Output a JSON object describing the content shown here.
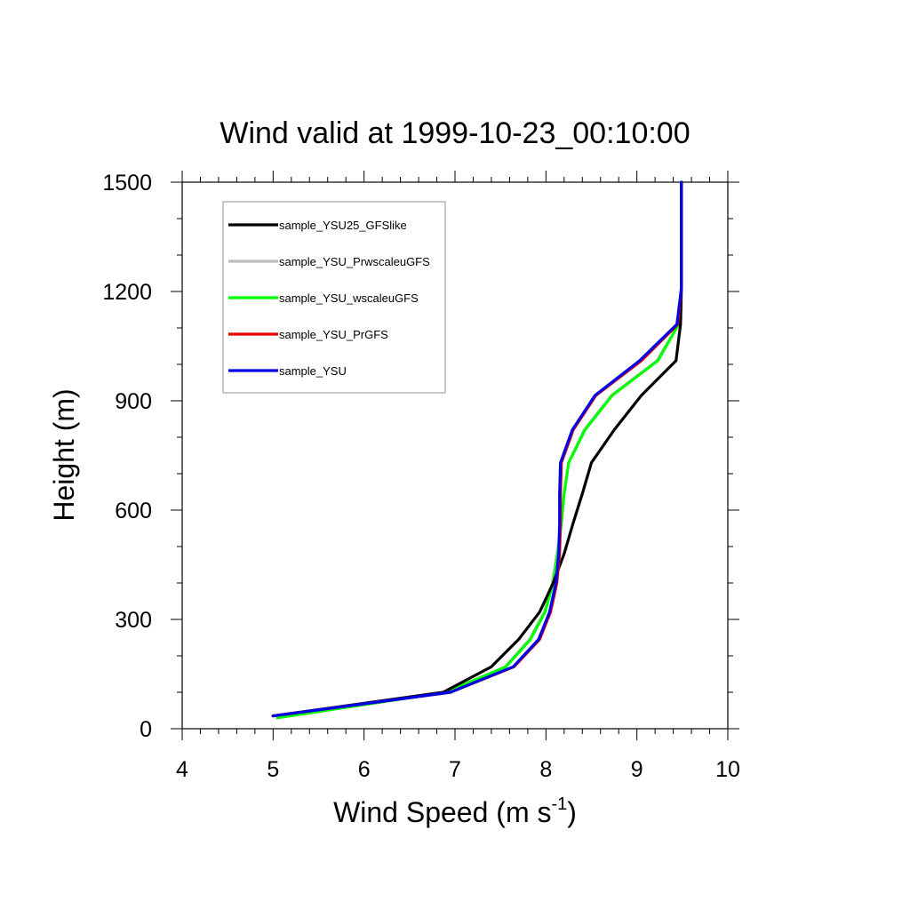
{
  "chart_data": {
    "type": "line",
    "title": "Wind valid at 1999-10-23_00:10:00",
    "xlabel": "Wind Speed (m s",
    "xlabel_sup": "-1",
    "xlabel_end": ")",
    "ylabel": "Height (m)",
    "xlim": [
      4,
      10
    ],
    "ylim": [
      0,
      1500
    ],
    "xticks": [
      4,
      5,
      6,
      7,
      8,
      9,
      10
    ],
    "yticks": [
      0,
      300,
      600,
      900,
      1200,
      1500
    ],
    "x_minor_step": 0.2,
    "y_minor_step": 100,
    "grid": false,
    "legend_position": "top-left",
    "series": [
      {
        "name": "sample_YSU25_GFSlike",
        "color": "#000000",
        "points": [
          [
            5.0,
            35
          ],
          [
            6.87,
            100
          ],
          [
            7.4,
            170
          ],
          [
            7.7,
            245
          ],
          [
            7.93,
            320
          ],
          [
            8.08,
            400
          ],
          [
            8.2,
            480
          ],
          [
            8.3,
            565
          ],
          [
            8.4,
            645
          ],
          [
            8.5,
            730
          ],
          [
            8.75,
            820
          ],
          [
            9.05,
            915
          ],
          [
            9.43,
            1010
          ],
          [
            9.48,
            1110
          ],
          [
            9.49,
            1210
          ],
          [
            9.49,
            1500
          ]
        ]
      },
      {
        "name": "sample_YSU_PrwscaleuGFS",
        "color": "#bdbdbd",
        "points": [
          [
            5.05,
            30
          ],
          [
            6.9,
            100
          ],
          [
            7.55,
            170
          ],
          [
            7.82,
            245
          ],
          [
            7.98,
            320
          ],
          [
            8.07,
            400
          ],
          [
            8.12,
            480
          ],
          [
            8.17,
            565
          ],
          [
            8.2,
            645
          ],
          [
            8.25,
            730
          ],
          [
            8.42,
            820
          ],
          [
            8.72,
            915
          ],
          [
            9.22,
            1010
          ],
          [
            9.46,
            1110
          ],
          [
            9.49,
            1210
          ],
          [
            9.49,
            1500
          ]
        ]
      },
      {
        "name": "sample_YSU_wscaleuGFS",
        "color": "#00ff00",
        "points": [
          [
            5.05,
            30
          ],
          [
            6.9,
            100
          ],
          [
            7.56,
            170
          ],
          [
            7.83,
            245
          ],
          [
            7.99,
            320
          ],
          [
            8.08,
            400
          ],
          [
            8.13,
            480
          ],
          [
            8.17,
            565
          ],
          [
            8.2,
            645
          ],
          [
            8.25,
            730
          ],
          [
            8.43,
            820
          ],
          [
            8.73,
            915
          ],
          [
            9.23,
            1010
          ],
          [
            9.46,
            1110
          ],
          [
            9.49,
            1210
          ],
          [
            9.49,
            1500
          ]
        ]
      },
      {
        "name": "sample_YSU_PrGFS",
        "color": "#e60000",
        "points": [
          [
            5.0,
            35
          ],
          [
            6.95,
            100
          ],
          [
            7.65,
            170
          ],
          [
            7.93,
            245
          ],
          [
            8.05,
            320
          ],
          [
            8.12,
            400
          ],
          [
            8.15,
            480
          ],
          [
            8.16,
            565
          ],
          [
            8.16,
            645
          ],
          [
            8.17,
            730
          ],
          [
            8.3,
            820
          ],
          [
            8.55,
            915
          ],
          [
            9.05,
            1010
          ],
          [
            9.45,
            1110
          ],
          [
            9.49,
            1210
          ],
          [
            9.49,
            1500
          ]
        ]
      },
      {
        "name": "sample_YSU",
        "color": "#0000e6",
        "points": [
          [
            5.0,
            35
          ],
          [
            6.95,
            100
          ],
          [
            7.64,
            170
          ],
          [
            7.92,
            245
          ],
          [
            8.04,
            320
          ],
          [
            8.11,
            400
          ],
          [
            8.14,
            480
          ],
          [
            8.15,
            565
          ],
          [
            8.15,
            645
          ],
          [
            8.16,
            730
          ],
          [
            8.29,
            820
          ],
          [
            8.54,
            915
          ],
          [
            9.03,
            1010
          ],
          [
            9.44,
            1110
          ],
          [
            9.49,
            1210
          ],
          [
            9.49,
            1500
          ]
        ]
      }
    ]
  }
}
